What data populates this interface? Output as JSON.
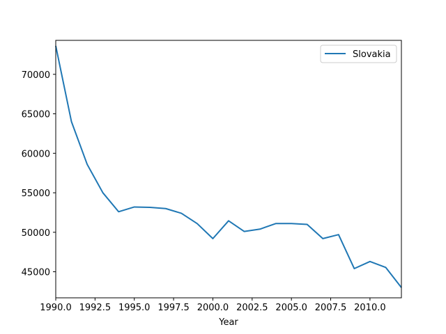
{
  "chart_data": {
    "type": "line",
    "title": "",
    "xlabel": "Year",
    "ylabel": "",
    "xlim": [
      1990,
      2012
    ],
    "ylim": [
      41700,
      74300
    ],
    "grid": false,
    "legend": {
      "placement": "top-right"
    },
    "x_ticks": [
      1990.0,
      1992.5,
      1995.0,
      1997.5,
      2000.0,
      2002.5,
      2005.0,
      2007.5,
      2010.0
    ],
    "x_tick_labels": [
      "1990.0",
      "1992.5",
      "1995.0",
      "1997.5",
      "2000.0",
      "2002.5",
      "2005.0",
      "2007.5",
      "2010.0"
    ],
    "y_ticks": [
      45000,
      50000,
      55000,
      60000,
      65000,
      70000
    ],
    "y_tick_labels": [
      "45000",
      "50000",
      "55000",
      "60000",
      "65000",
      "70000"
    ],
    "x": [
      1990,
      1991,
      1992,
      1993,
      1994,
      1995,
      1996,
      1997,
      1998,
      1999,
      2000,
      2001,
      2002,
      2003,
      2004,
      2005,
      2006,
      2007,
      2008,
      2009,
      2010,
      2011,
      2012
    ],
    "series": [
      {
        "name": "Slovakia",
        "color": "#1f77b4",
        "values": [
          73600,
          64000,
          58600,
          55000,
          52600,
          53200,
          53150,
          53000,
          52400,
          51100,
          49200,
          51450,
          50100,
          50400,
          51100,
          51100,
          51000,
          49200,
          49700,
          45400,
          46300,
          45550,
          43000
        ]
      }
    ]
  }
}
